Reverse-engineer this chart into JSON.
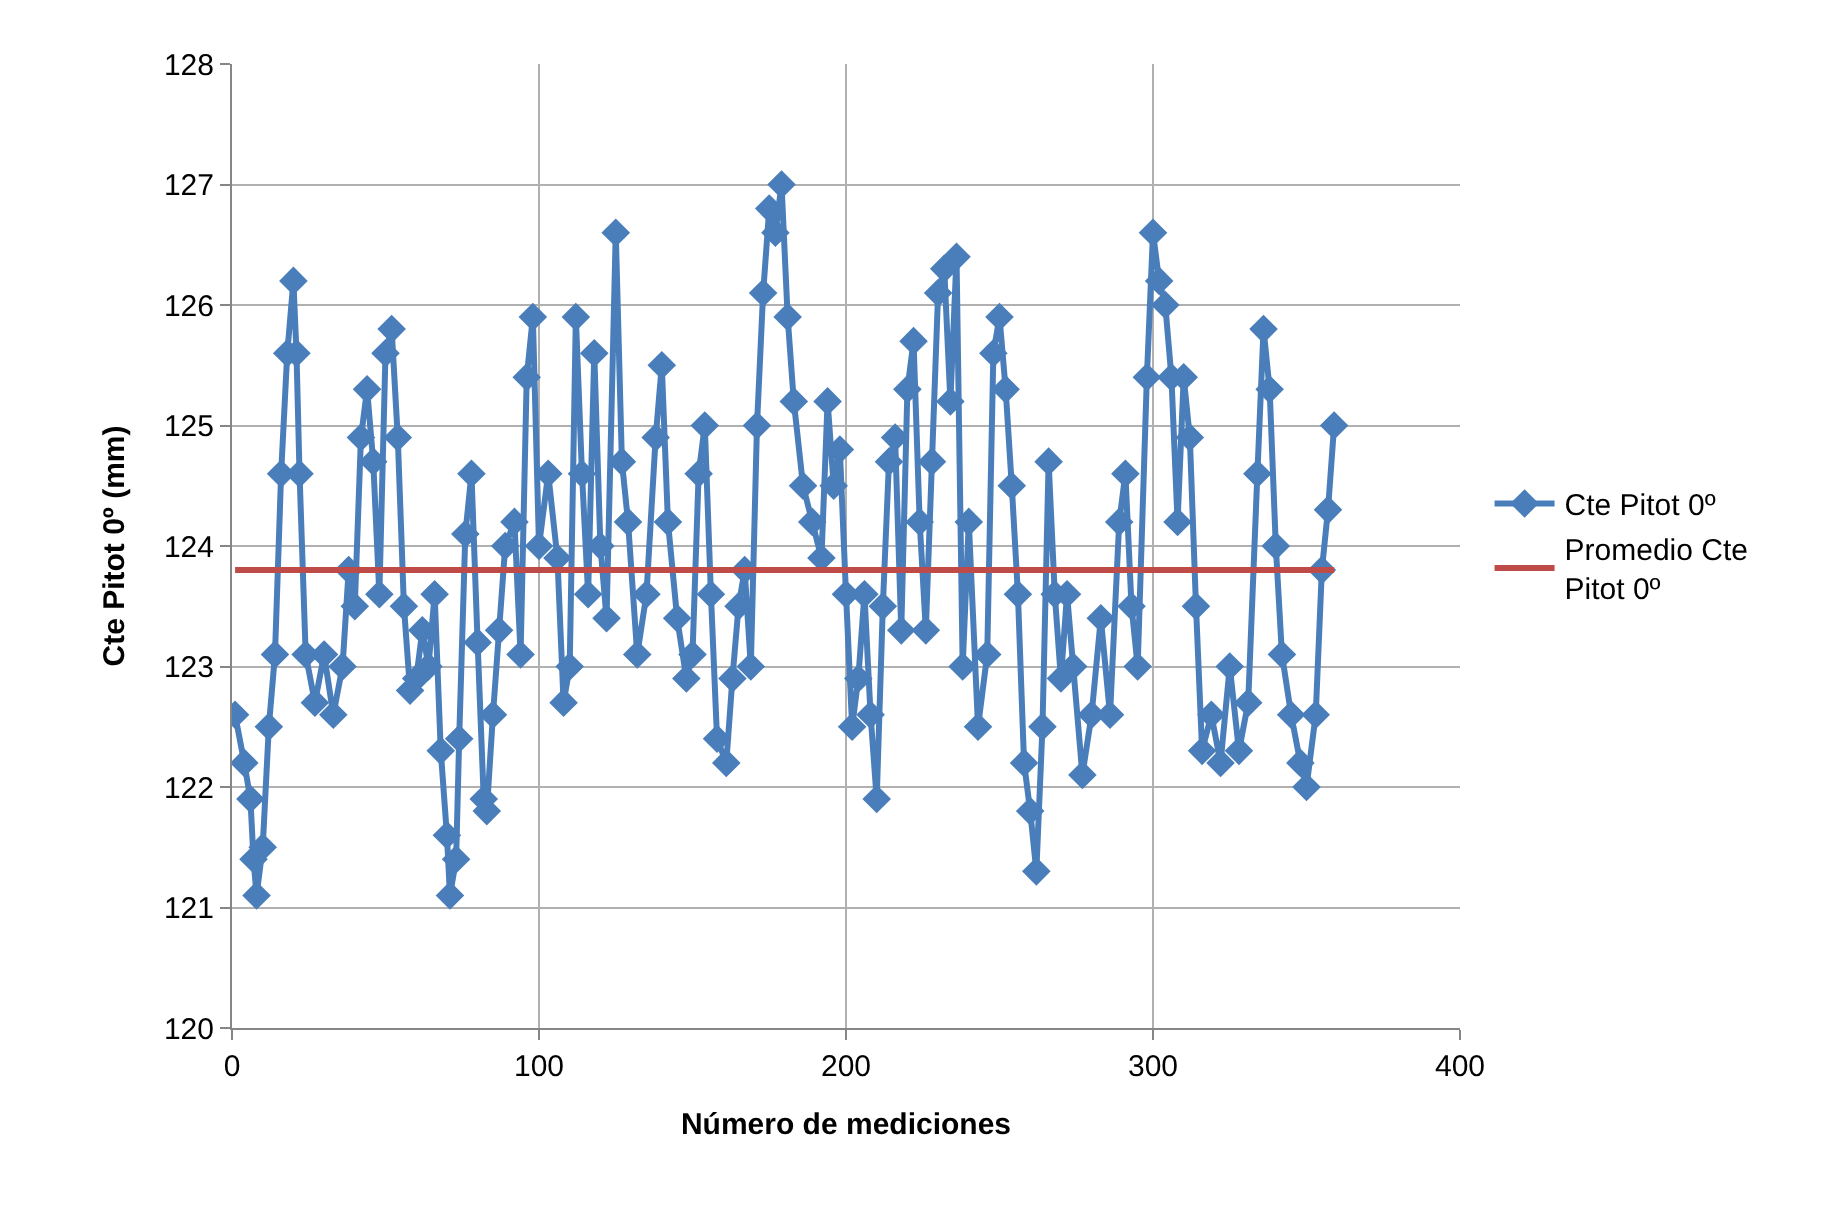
{
  "chart_data": {
    "type": "line",
    "xlabel": "Número de mediciones",
    "ylabel": "Cte Pitot 0º (mm)",
    "xlim": [
      0,
      400
    ],
    "xticks": [
      0,
      100,
      200,
      300,
      400
    ],
    "ylim": [
      120,
      128
    ],
    "yticks": [
      120,
      121,
      122,
      123,
      124,
      125,
      126,
      127,
      128
    ],
    "grid": true,
    "legend": "right",
    "marker": "diamond",
    "line_style": "solid",
    "series": [
      {
        "name": "Cte Pitot 0º",
        "color": "#4a7ebb",
        "x": [
          1,
          4,
          6,
          7,
          8,
          10,
          12,
          14,
          16,
          18,
          20,
          21,
          22,
          24,
          27,
          30,
          33,
          36,
          38,
          40,
          42,
          44,
          46,
          48,
          50,
          52,
          54,
          56,
          58,
          60,
          62,
          64,
          66,
          68,
          70,
          71,
          73,
          74,
          76,
          78,
          80,
          82,
          83,
          85,
          87,
          89,
          92,
          94,
          96,
          98,
          100,
          103,
          106,
          108,
          110,
          112,
          114,
          116,
          118,
          120,
          122,
          125,
          127,
          129,
          132,
          135,
          138,
          140,
          142,
          145,
          148,
          150,
          152,
          154,
          156,
          158,
          161,
          163,
          165,
          167,
          169,
          171,
          173,
          175,
          177,
          179,
          181,
          183,
          186,
          189,
          192,
          194,
          196,
          198,
          200,
          202,
          204,
          206,
          208,
          210,
          212,
          214,
          216,
          218,
          220,
          222,
          224,
          226,
          228,
          230,
          232,
          234,
          236,
          238,
          240,
          243,
          246,
          248,
          250,
          252,
          254,
          256,
          258,
          260,
          262,
          264,
          266,
          268,
          270,
          272,
          274,
          277,
          280,
          283,
          286,
          289,
          291,
          293,
          295,
          298,
          300,
          302,
          304,
          306,
          308,
          310,
          312,
          314,
          316,
          319,
          322,
          325,
          328,
          331,
          334,
          336,
          338,
          340,
          342,
          345,
          348,
          350,
          353,
          355,
          357,
          359
        ],
        "values": [
          122.6,
          122.2,
          121.9,
          121.4,
          121.1,
          121.5,
          122.5,
          123.1,
          124.6,
          125.6,
          126.2,
          125.6,
          124.6,
          123.1,
          122.7,
          123.1,
          122.6,
          123.0,
          123.8,
          123.5,
          124.9,
          125.3,
          124.7,
          123.6,
          125.6,
          125.8,
          124.9,
          123.5,
          122.8,
          122.9,
          123.3,
          123.0,
          123.6,
          122.3,
          121.6,
          121.1,
          121.4,
          122.4,
          124.1,
          124.6,
          123.2,
          121.9,
          121.8,
          122.6,
          123.3,
          124.0,
          124.2,
          123.1,
          125.4,
          125.9,
          124.0,
          124.6,
          123.9,
          122.7,
          123.0,
          125.9,
          124.6,
          123.6,
          125.6,
          124.0,
          123.4,
          126.6,
          124.7,
          124.2,
          123.1,
          123.6,
          124.9,
          125.5,
          124.2,
          123.4,
          122.9,
          123.1,
          124.6,
          125.0,
          123.6,
          122.4,
          122.2,
          122.9,
          123.5,
          123.8,
          123.0,
          125.0,
          126.1,
          126.8,
          126.6,
          127.0,
          125.9,
          125.2,
          124.5,
          124.2,
          123.9,
          125.2,
          124.5,
          124.8,
          123.6,
          122.5,
          122.9,
          123.6,
          122.6,
          121.9,
          123.5,
          124.7,
          124.9,
          123.3,
          125.3,
          125.7,
          124.2,
          123.3,
          124.7,
          126.1,
          126.3,
          125.2,
          126.4,
          123.0,
          124.2,
          122.5,
          123.1,
          125.6,
          125.9,
          125.3,
          124.5,
          123.6,
          122.2,
          121.8,
          121.3,
          122.5,
          124.7,
          123.6,
          122.9,
          123.6,
          123.0,
          122.1,
          122.6,
          123.4,
          122.6,
          124.2,
          124.6,
          123.5,
          123.0,
          125.4,
          126.6,
          126.2,
          126.0,
          125.4,
          124.2,
          125.4,
          124.9,
          123.5,
          122.3,
          122.6,
          122.2,
          123.0,
          122.3,
          122.7,
          124.6,
          125.8,
          125.3,
          124.0,
          123.1,
          122.6,
          122.2,
          122.0,
          122.6,
          123.8,
          124.3,
          125.0
        ]
      },
      {
        "name": "Promedio Cte Pitot 0º",
        "color": "#be4b48",
        "marker": "none",
        "x": [
          1,
          359
        ],
        "values": [
          123.8,
          123.8
        ]
      }
    ]
  }
}
